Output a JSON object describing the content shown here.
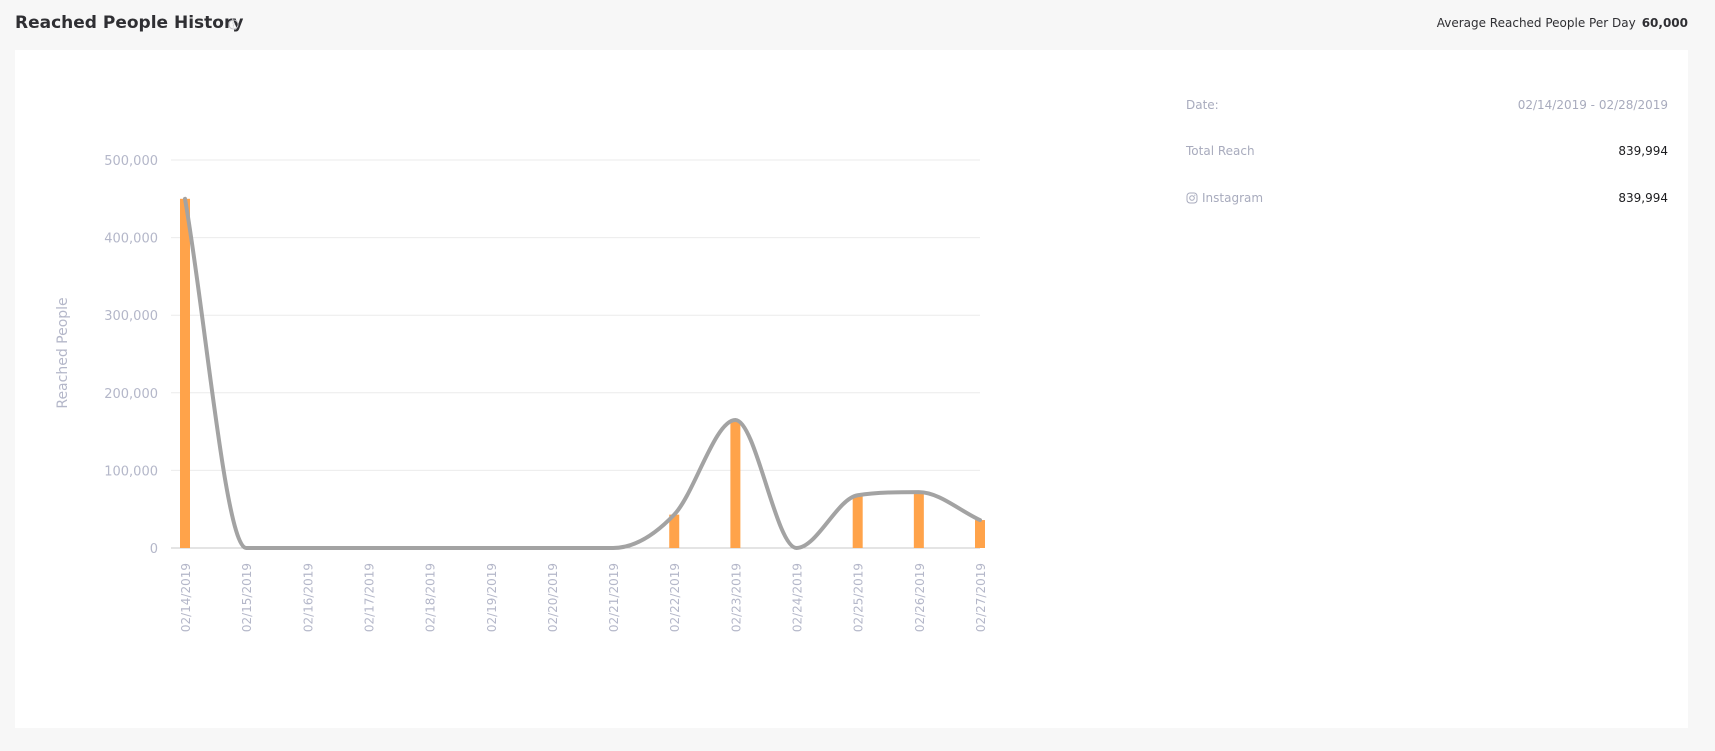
{
  "header": {
    "title": "Reached People History",
    "avg_label": "Average Reached People Per Day",
    "avg_value": "60,000"
  },
  "summary": {
    "date_label": "Date:",
    "date_value": "02/14/2019 - 02/28/2019",
    "total_label": "Total Reach",
    "total_value": "839,994",
    "instagram_label": "Instagram",
    "instagram_value": "839,994"
  },
  "colors": {
    "bar": "#ffa34a",
    "line": "#a3a3a3",
    "axis_text": "#b4b7c9",
    "grid": "#ebebeb"
  },
  "chart_data": {
    "type": "bar",
    "title": "",
    "xlabel": "",
    "ylabel": "Reached People",
    "ylim": [
      0,
      500000
    ],
    "yticks": [
      0,
      100000,
      200000,
      300000,
      400000,
      500000
    ],
    "ytick_labels": [
      "0",
      "100,000",
      "200,000",
      "300,000",
      "400,000",
      "500,000"
    ],
    "grid": true,
    "categories": [
      "02/14/2019",
      "02/15/2019",
      "02/16/2019",
      "02/17/2019",
      "02/18/2019",
      "02/19/2019",
      "02/20/2019",
      "02/21/2019",
      "02/22/2019",
      "02/23/2019",
      "02/24/2019",
      "02/25/2019",
      "02/26/2019",
      "02/27/2019"
    ],
    "series": [
      {
        "type": "bar",
        "values": [
          450000,
          0,
          0,
          0,
          0,
          0,
          0,
          0,
          43000,
          165000,
          0,
          68000,
          72000,
          36000
        ]
      },
      {
        "type": "line",
        "smooth": true,
        "values": [
          450000,
          0,
          0,
          0,
          0,
          0,
          0,
          0,
          43000,
          165000,
          0,
          68000,
          72000,
          36000
        ]
      }
    ]
  }
}
